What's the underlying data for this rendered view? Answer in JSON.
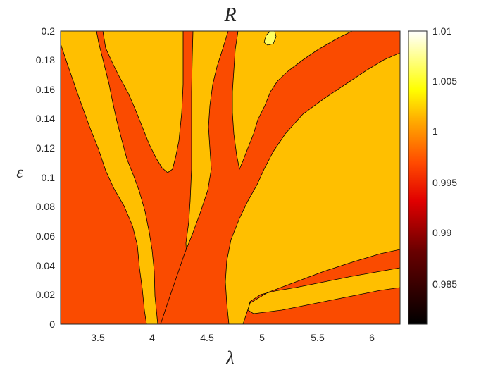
{
  "chart_data": {
    "type": "contour",
    "title": "R",
    "xlabel": "λ",
    "ylabel": "ε",
    "xlim": [
      3.1416,
      6.2832
    ],
    "ylim": [
      0,
      0.2
    ],
    "x_ticks": [
      "3.5",
      "4",
      "4.5",
      "5",
      "5.5",
      "6"
    ],
    "y_ticks": [
      "0",
      "0.02",
      "0.04",
      "0.06",
      "0.08",
      "0.1",
      "0.12",
      "0.14",
      "0.16",
      "0.18",
      "0.2"
    ],
    "colormap": "hot",
    "colorbar": {
      "range": [
        0.981,
        1.01
      ],
      "ticks": [
        "0.985",
        "0.99",
        "0.995",
        "1",
        "1.005",
        "1.01"
      ]
    },
    "levels": [
      {
        "level": "below 1",
        "value": 0.9975,
        "color": "#fa4b00"
      },
      {
        "level": "near 1",
        "value": 1.0,
        "color": "#ffbf00"
      },
      {
        "level": "above 1",
        "value": 1.008,
        "color": "#ffff60"
      }
    ],
    "regions": [
      {
        "name": "lower-left lobe",
        "value": 0.9975
      },
      {
        "name": "central stem",
        "value": 0.9975
      },
      {
        "name": "central fan",
        "value": 0.9975
      },
      {
        "name": "right band",
        "value": 0.9975
      },
      {
        "name": "background",
        "value": 1.0
      },
      {
        "name": "peak near lambda 5.05 epsilon 0.195",
        "value": 1.008
      }
    ]
  }
}
